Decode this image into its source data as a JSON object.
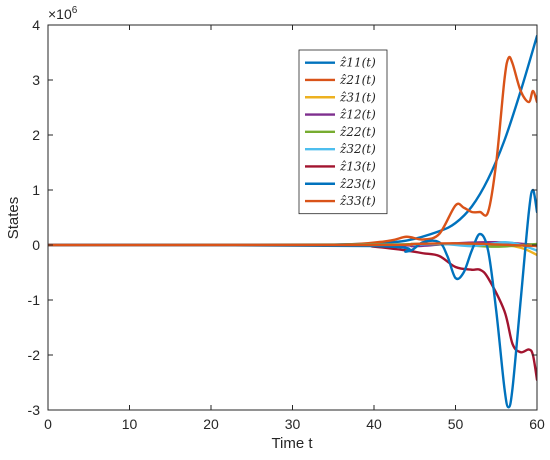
{
  "chart_data": {
    "type": "line",
    "xlabel": "Time t",
    "ylabel": "States",
    "xlim": [
      0,
      60
    ],
    "ylim": [
      -3,
      4
    ],
    "y_multiplier_text": "×10",
    "y_multiplier_exp": "6",
    "xticks": [
      "0",
      "10",
      "20",
      "30",
      "40",
      "50",
      "60"
    ],
    "yticks": [
      "-3",
      "-2",
      "-1",
      "0",
      "1",
      "2",
      "3",
      "4"
    ],
    "grid": false,
    "legend_position": "top-right",
    "y_unit_scale": 1000000,
    "series": [
      {
        "name": "ẑ11(t)",
        "color": "#0072BD",
        "points": [
          [
            0,
            0
          ],
          [
            30,
            0
          ],
          [
            36,
            0.01
          ],
          [
            40,
            0.03
          ],
          [
            44,
            0.08
          ],
          [
            48,
            0.25
          ],
          [
            50,
            0.4
          ],
          [
            52,
            0.7
          ],
          [
            54,
            1.2
          ],
          [
            56,
            1.9
          ],
          [
            58,
            2.8
          ],
          [
            60,
            3.8
          ]
        ]
      },
      {
        "name": "ẑ21(t)",
        "color": "#D95319",
        "points": [
          [
            0,
            0
          ],
          [
            30,
            0
          ],
          [
            38,
            0.02
          ],
          [
            42,
            0.08
          ],
          [
            44,
            0.15
          ],
          [
            46,
            0.1
          ],
          [
            48,
            0.2
          ],
          [
            50,
            0.72
          ],
          [
            51,
            0.68
          ],
          [
            52,
            0.6
          ],
          [
            53,
            0.6
          ],
          [
            54,
            0.6
          ],
          [
            55,
            1.5
          ],
          [
            56,
            3.0
          ],
          [
            56.5,
            3.4
          ],
          [
            57,
            3.3
          ],
          [
            58,
            2.8
          ],
          [
            59,
            2.6
          ],
          [
            59.5,
            2.8
          ],
          [
            60,
            2.6
          ]
        ]
      },
      {
        "name": "ẑ31(t)",
        "color": "#EDB120",
        "points": [
          [
            0,
            0
          ],
          [
            40,
            0
          ],
          [
            50,
            0.02
          ],
          [
            55,
            0.02
          ],
          [
            58,
            -0.05
          ],
          [
            60,
            -0.18
          ]
        ]
      },
      {
        "name": "ẑ12(t)",
        "color": "#7E2F8E",
        "points": [
          [
            0,
            0
          ],
          [
            40,
            0
          ],
          [
            45,
            -0.02
          ],
          [
            50,
            0.03
          ],
          [
            55,
            0.05
          ],
          [
            60,
            0
          ]
        ]
      },
      {
        "name": "ẑ22(t)",
        "color": "#77AC30",
        "points": [
          [
            0,
            0
          ],
          [
            40,
            0.01
          ],
          [
            45,
            0.02
          ],
          [
            50,
            0.01
          ],
          [
            55,
            -0.03
          ],
          [
            60,
            0.02
          ]
        ]
      },
      {
        "name": "ẑ32(t)",
        "color": "#4DBEEE",
        "points": [
          [
            0,
            0
          ],
          [
            40,
            0
          ],
          [
            48,
            0.02
          ],
          [
            52,
            -0.02
          ],
          [
            56,
            0.05
          ],
          [
            58,
            0
          ],
          [
            60,
            -0.1
          ]
        ]
      },
      {
        "name": "ẑ13(t)",
        "color": "#A2142F",
        "points": [
          [
            0,
            0
          ],
          [
            36,
            0
          ],
          [
            40,
            -0.03
          ],
          [
            44,
            -0.1
          ],
          [
            46,
            -0.15
          ],
          [
            48,
            -0.2
          ],
          [
            50,
            -0.4
          ],
          [
            52,
            -0.45
          ],
          [
            53,
            -0.45
          ],
          [
            54,
            -0.6
          ],
          [
            56,
            -1.2
          ],
          [
            57,
            -1.8
          ],
          [
            58,
            -1.95
          ],
          [
            59,
            -1.9
          ],
          [
            59.5,
            -2.0
          ],
          [
            60,
            -2.45
          ]
        ]
      },
      {
        "name": "ẑ23(t)",
        "color": "#0072BD",
        "points": [
          [
            0,
            0
          ],
          [
            40,
            -0.02
          ],
          [
            44,
            -0.12
          ],
          [
            46,
            0.05
          ],
          [
            48,
            0.05
          ],
          [
            49,
            -0.2
          ],
          [
            50,
            -0.6
          ],
          [
            51,
            -0.5
          ],
          [
            52,
            -0.1
          ],
          [
            53,
            0.2
          ],
          [
            54,
            -0.1
          ],
          [
            55,
            -1.2
          ],
          [
            56,
            -2.6
          ],
          [
            56.5,
            -2.95
          ],
          [
            57,
            -2.6
          ],
          [
            58,
            -1.0
          ],
          [
            59,
            0.6
          ],
          [
            59.5,
            1.0
          ],
          [
            60,
            0.6
          ]
        ]
      },
      {
        "name": "ẑ33(t)",
        "color": "#D95319",
        "points": [
          [
            0,
            0
          ],
          [
            40,
            0
          ],
          [
            45,
            0.02
          ],
          [
            50,
            0.03
          ],
          [
            55,
            0.01
          ],
          [
            60,
            -0.02
          ]
        ]
      }
    ]
  }
}
